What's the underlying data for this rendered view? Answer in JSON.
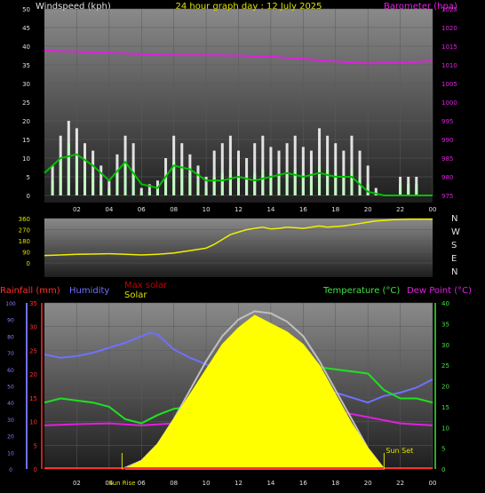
{
  "chart_data": [
    {
      "type": "line",
      "title": "24 hour graph day : 12 July 2025",
      "ylabel": "Windspeed (kph)",
      "y2label": "Barometer (hpa)",
      "xticks": [
        "02",
        "04",
        "06",
        "08",
        "10",
        "12",
        "14",
        "16",
        "18",
        "20",
        "22",
        "00"
      ],
      "yticks": [
        "0",
        "5",
        "10",
        "15",
        "20",
        "25",
        "30",
        "35",
        "40",
        "45",
        "50"
      ],
      "y2ticks": [
        "975",
        "980",
        "985",
        "990",
        "995",
        "1000",
        "1005",
        "1010",
        "1015",
        "1020",
        "1025"
      ],
      "ylim": [
        0,
        50
      ],
      "y2lim": [
        975,
        1025
      ],
      "xlim": [
        0,
        24
      ],
      "colors": {
        "gust": "#ffffff",
        "wind": "#c0ffc0",
        "avg_wind": "#00c000",
        "barometer": "#e020e0"
      },
      "series": [
        {
          "role": "gust",
          "x": [
            0.5,
            1,
            1.5,
            2,
            2.5,
            3,
            3.5,
            4,
            4.5,
            5,
            5.5,
            6,
            6.5,
            7,
            7.5,
            8,
            8.5,
            9,
            9.5,
            10,
            10.5,
            11,
            11.5,
            12,
            12.5,
            13,
            13.5,
            14,
            14.5,
            15,
            15.5,
            16,
            16.5,
            17,
            17.5,
            18,
            18.5,
            19,
            19.5,
            20,
            20.5,
            21,
            21.5,
            22,
            22.5,
            23,
            23.5
          ],
          "values": [
            8,
            16,
            20,
            18,
            14,
            12,
            8,
            4,
            11,
            16,
            14,
            2,
            3,
            4,
            10,
            16,
            14,
            11,
            8,
            5,
            12,
            14,
            16,
            12,
            10,
            14,
            16,
            13,
            12,
            14,
            16,
            13,
            12,
            18,
            16,
            14,
            12,
            16,
            12,
            8,
            2,
            0,
            0,
            5,
            5,
            5,
            0
          ]
        },
        {
          "role": "wind",
          "x": [
            0.5,
            1,
            1.5,
            2,
            2.5,
            3,
            3.5,
            4,
            4.5,
            5,
            5.5,
            6,
            6.5,
            7,
            7.5,
            8,
            8.5,
            9,
            9.5,
            10,
            10.5,
            11,
            11.5,
            12,
            12.5,
            13,
            13.5,
            14,
            14.5,
            15,
            15.5,
            16,
            16.5,
            17,
            17.5,
            18,
            18.5,
            19,
            19.5,
            20,
            20.5,
            21,
            21.5,
            22,
            22.5,
            23,
            23.5
          ],
          "values": [
            4,
            10,
            14,
            10,
            7,
            6,
            4,
            2,
            6,
            9,
            7,
            1,
            1,
            2,
            5,
            9,
            8,
            6,
            4,
            2,
            5,
            6,
            7,
            5,
            4,
            6,
            7,
            6,
            5,
            6,
            7,
            6,
            5,
            8,
            7,
            6,
            5,
            7,
            5,
            3,
            1,
            0,
            0,
            3,
            3,
            3,
            0
          ]
        },
        {
          "role": "avg_wind",
          "x": [
            0,
            1,
            2,
            3,
            4,
            5,
            6,
            7,
            8,
            9,
            10,
            11,
            12,
            13,
            14,
            15,
            16,
            17,
            18,
            19,
            20,
            21,
            22,
            23,
            24
          ],
          "values": [
            6,
            10,
            11,
            8,
            4,
            9,
            3,
            2,
            8,
            7,
            4,
            4,
            5,
            4,
            5,
            6,
            5,
            6,
            5,
            5,
            1,
            0,
            0,
            0,
            0
          ]
        },
        {
          "role": "barometer",
          "x": [
            0,
            2,
            4,
            6,
            8,
            10,
            12,
            14,
            16,
            18,
            20,
            22,
            24
          ],
          "values": [
            1013.8,
            1013.5,
            1013.2,
            1012.9,
            1012.6,
            1012.6,
            1012.5,
            1012.2,
            1011.6,
            1010.9,
            1010.4,
            1010.6,
            1011.0
          ]
        }
      ]
    },
    {
      "type": "scatter",
      "right_labels": [
        "N",
        "W",
        "S",
        "E",
        "N"
      ],
      "yticks": [
        "0",
        "90",
        "180",
        "270",
        "360"
      ],
      "ylim": [
        0,
        360
      ],
      "xlim": [
        0,
        24
      ],
      "colors": {
        "direction": "#f0f000"
      },
      "series": [
        {
          "role": "direction",
          "x": [
            0,
            1,
            2,
            3,
            4,
            5,
            6,
            7,
            8,
            9,
            10,
            10.5,
            11,
            11.5,
            12,
            12.5,
            13,
            13.5,
            14,
            14.5,
            15,
            15.5,
            16,
            16.5,
            17,
            17.5,
            18,
            18.5,
            19,
            19.5,
            20,
            20.5,
            21,
            21.5,
            22,
            22.5,
            23,
            23.5,
            24
          ],
          "values": [
            60,
            65,
            70,
            72,
            75,
            70,
            65,
            70,
            80,
            100,
            120,
            150,
            190,
            230,
            250,
            270,
            280,
            290,
            275,
            280,
            290,
            285,
            280,
            290,
            300,
            290,
            295,
            300,
            310,
            320,
            330,
            340,
            345,
            350,
            352,
            355,
            355,
            355,
            355
          ]
        }
      ]
    },
    {
      "type": "line",
      "labels": {
        "rain": "Rainfall (mm)",
        "hum": "Humidity",
        "maxsolar": "Max solar",
        "solar": "Solar",
        "temp": "Temperature (°C)",
        "dew": "Dew Point (°C)",
        "sunrise": "Sun Rise",
        "sunset": "Sun Set"
      },
      "xticks": [
        "02",
        "04",
        "06",
        "08",
        "10",
        "12",
        "14",
        "16",
        "18",
        "20",
        "22",
        "00"
      ],
      "hum_ticks": [
        "0",
        "10",
        "20",
        "30",
        "40",
        "50",
        "60",
        "70",
        "80",
        "90",
        "100"
      ],
      "rain_ticks": [
        "0",
        "5",
        "10",
        "15",
        "20",
        "25",
        "30",
        "35"
      ],
      "temp_ticks": [
        "0",
        "5",
        "10",
        "15",
        "20",
        "25",
        "30",
        "35",
        "40"
      ],
      "hum_lim": [
        0,
        100
      ],
      "temp_lim": [
        0,
        40
      ],
      "xlim": [
        0,
        24
      ],
      "sunrise_hour": 4.8,
      "sunset_hour": 21.0,
      "colors": {
        "rain": "#ff3030",
        "humidity": "#7070ff",
        "temp": "#20e020",
        "dew": "#e020e0",
        "solar": "#ffff00",
        "maxsolar": "#c0c0c0"
      },
      "series": [
        {
          "role": "humidity",
          "x": [
            0,
            1,
            2,
            3,
            4,
            5,
            6,
            6.5,
            7,
            8,
            9,
            10,
            11,
            12,
            13,
            14,
            15,
            16,
            17,
            18,
            19,
            20,
            21,
            22,
            23,
            24
          ],
          "values": [
            69,
            67,
            68,
            70,
            73,
            76,
            80,
            82,
            81,
            72,
            67,
            63,
            59,
            56,
            52,
            50,
            49,
            48,
            47,
            46,
            43,
            40,
            44,
            46,
            49,
            54
          ]
        },
        {
          "role": "temp",
          "x": [
            0,
            1,
            2,
            3,
            4,
            5,
            6,
            7,
            8,
            9,
            10,
            11,
            12,
            13,
            14,
            15,
            16,
            17,
            18,
            19,
            20,
            21,
            22,
            23,
            24
          ],
          "values": [
            16,
            17,
            16.5,
            16,
            15,
            12,
            11,
            13,
            14.5,
            15,
            17,
            19,
            21,
            22,
            22,
            23,
            24,
            24.5,
            24,
            23.5,
            23,
            19,
            17,
            17,
            16
          ]
        },
        {
          "role": "dew",
          "x": [
            0,
            2,
            4,
            6,
            8,
            10,
            12,
            14,
            16,
            18,
            20,
            22,
            24
          ],
          "values": [
            10.5,
            10.8,
            11,
            10.5,
            11,
            12,
            13,
            13.5,
            13.8,
            14,
            12.5,
            11,
            10.5
          ]
        },
        {
          "role": "maxsolar",
          "x": [
            4.8,
            6,
            7,
            8,
            9,
            10,
            11,
            12,
            13,
            14,
            15,
            16,
            17,
            18,
            19,
            20,
            21
          ],
          "values": [
            0,
            2,
            6,
            12,
            19,
            26,
            32,
            36,
            38,
            37.5,
            35.5,
            32,
            26,
            19,
            12,
            5,
            0
          ]
        },
        {
          "role": "solar",
          "x": [
            5,
            6,
            7,
            8,
            9,
            10,
            11,
            12,
            13,
            14,
            15,
            16,
            17,
            18,
            19,
            20,
            21
          ],
          "values": [
            0,
            2,
            6,
            12,
            18,
            24,
            30,
            34,
            37,
            35,
            33,
            30,
            25,
            18,
            11,
            5,
            0
          ]
        }
      ]
    }
  ]
}
